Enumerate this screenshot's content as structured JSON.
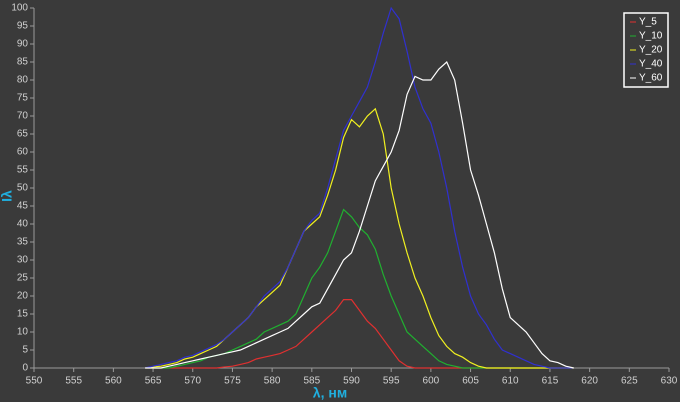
{
  "chart_data": {
    "type": "line",
    "x_label": "λ, нм",
    "y_label": "Iλ",
    "xlim": [
      550,
      630
    ],
    "xticks": [
      550,
      555,
      560,
      565,
      570,
      575,
      580,
      585,
      590,
      595,
      600,
      605,
      610,
      615,
      620,
      625,
      630
    ],
    "ylim": [
      0,
      100
    ],
    "yticks": [
      0,
      5,
      10,
      15,
      20,
      25,
      30,
      35,
      40,
      45,
      50,
      55,
      60,
      65,
      70,
      75,
      80,
      85,
      90,
      95,
      100
    ],
    "grid": false,
    "legend": "top-right",
    "x": [
      564,
      565,
      566,
      567,
      568,
      569,
      570,
      571,
      572,
      573,
      574,
      575,
      576,
      577,
      578,
      579,
      580,
      581,
      582,
      583,
      584,
      585,
      586,
      587,
      588,
      589,
      590,
      591,
      592,
      593,
      594,
      595,
      596,
      597,
      598,
      599,
      600,
      601,
      602,
      603,
      604,
      605,
      606,
      607,
      608,
      609,
      610,
      611,
      612,
      613,
      614,
      615,
      616,
      617,
      618
    ],
    "series": [
      {
        "name": "Y_5",
        "color": "#e03030",
        "values": [
          0,
          0,
          0,
          0,
          0,
          0,
          0,
          0,
          0,
          0,
          0.3,
          0.5,
          1,
          1.5,
          2.5,
          3,
          3.5,
          4,
          5,
          6,
          8,
          10,
          12,
          14,
          16,
          19,
          19,
          16,
          13,
          11,
          8,
          5,
          2,
          0.5,
          0,
          0,
          0,
          0,
          0,
          0,
          0,
          0,
          0,
          0,
          0,
          0,
          0,
          0,
          0,
          0,
          0,
          0,
          0,
          0,
          0
        ]
      },
      {
        "name": "Y_10",
        "color": "#20b030",
        "values": [
          0,
          0,
          0,
          0,
          0.5,
          1,
          1.5,
          2,
          3,
          3.5,
          4,
          5,
          6,
          7,
          8,
          10,
          11,
          12,
          13,
          15,
          20,
          25,
          28,
          32,
          38,
          44,
          42,
          39,
          37,
          33,
          26,
          20,
          15,
          10,
          8,
          6,
          4,
          2,
          1,
          0.5,
          0,
          0,
          0,
          0,
          0,
          0,
          0,
          0,
          0,
          0,
          0,
          0,
          0,
          0,
          0
        ]
      },
      {
        "name": "Y_20",
        "color": "#f0f020",
        "values": [
          0,
          0.3,
          0.5,
          1,
          1.5,
          2.5,
          3,
          4,
          5,
          6,
          8,
          10,
          12,
          14,
          17,
          19,
          21,
          23,
          28,
          33,
          38,
          40,
          42,
          48,
          55,
          64,
          69,
          67,
          70,
          72,
          65,
          50,
          40,
          32,
          25,
          20,
          14,
          9,
          6,
          4,
          3,
          1.5,
          0.5,
          0,
          0,
          0,
          0,
          0,
          0,
          0,
          0,
          0,
          0,
          0,
          0
        ]
      },
      {
        "name": "Y_40",
        "color": "#3030d0",
        "values": [
          0,
          0.5,
          1,
          1.5,
          2,
          3,
          3.5,
          4.5,
          5.5,
          6.5,
          8,
          10,
          12,
          14,
          17,
          20,
          22,
          24,
          28,
          33,
          38,
          41,
          43,
          50,
          58,
          66,
          70,
          74,
          78,
          85,
          93,
          100,
          97,
          88,
          78,
          72,
          68,
          60,
          50,
          38,
          28,
          20,
          15,
          12,
          8,
          5,
          4,
          3,
          2,
          1,
          0.5,
          0,
          0,
          0,
          0
        ]
      },
      {
        "name": "Y_60",
        "color": "#ffffff",
        "values": [
          0,
          0,
          0,
          0.5,
          1,
          1.5,
          2,
          2.5,
          3,
          3.5,
          4,
          4.5,
          5,
          6,
          7,
          8,
          9,
          10,
          11,
          13,
          15,
          17,
          18,
          22,
          26,
          30,
          32,
          38,
          45,
          52,
          56,
          60,
          66,
          76,
          81,
          80,
          80,
          83,
          85,
          80,
          68,
          55,
          48,
          40,
          32,
          22,
          14,
          12,
          10,
          7,
          4,
          2,
          1.5,
          0.5,
          0
        ]
      }
    ]
  }
}
